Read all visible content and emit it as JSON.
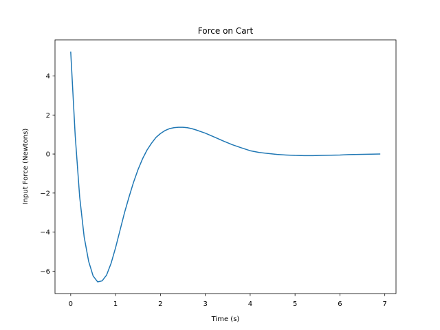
{
  "chart_data": {
    "type": "line",
    "title": "Force on Cart",
    "xlabel": "Time (s)",
    "ylabel": "Input Force (Newtons)",
    "xlim": [
      -0.35,
      7.25
    ],
    "ylim": [
      -7.15,
      5.85
    ],
    "xticks": [
      0,
      1,
      2,
      3,
      4,
      5,
      6,
      7
    ],
    "yticks": [
      -6,
      -4,
      -2,
      0,
      2,
      4
    ],
    "ytick_labels": [
      "−6",
      "−4",
      "−2",
      "0",
      "2",
      "4"
    ],
    "grid": false,
    "series": [
      {
        "color": "#1f77b4",
        "x": [
          0.0,
          0.1,
          0.2,
          0.3,
          0.4,
          0.5,
          0.6,
          0.7,
          0.8,
          0.9,
          1.0,
          1.1,
          1.2,
          1.3,
          1.4,
          1.5,
          1.6,
          1.7,
          1.8,
          1.9,
          2.0,
          2.1,
          2.2,
          2.3,
          2.4,
          2.5,
          2.6,
          2.7,
          2.8,
          2.9,
          3.0,
          3.2,
          3.4,
          3.6,
          3.8,
          4.0,
          4.2,
          4.4,
          4.6,
          4.8,
          5.0,
          5.2,
          5.4,
          5.6,
          5.8,
          6.0,
          6.2,
          6.4,
          6.6,
          6.9
        ],
        "y": [
          5.25,
          0.95,
          -2.2,
          -4.25,
          -5.5,
          -6.25,
          -6.55,
          -6.5,
          -6.2,
          -5.6,
          -4.8,
          -3.9,
          -3.0,
          -2.2,
          -1.45,
          -0.8,
          -0.25,
          0.2,
          0.55,
          0.85,
          1.05,
          1.2,
          1.3,
          1.35,
          1.37,
          1.37,
          1.35,
          1.3,
          1.23,
          1.15,
          1.07,
          0.87,
          0.67,
          0.48,
          0.32,
          0.17,
          0.08,
          0.03,
          -0.02,
          -0.05,
          -0.07,
          -0.08,
          -0.08,
          -0.07,
          -0.06,
          -0.05,
          -0.03,
          -0.02,
          -0.01,
          0.0
        ]
      }
    ]
  }
}
